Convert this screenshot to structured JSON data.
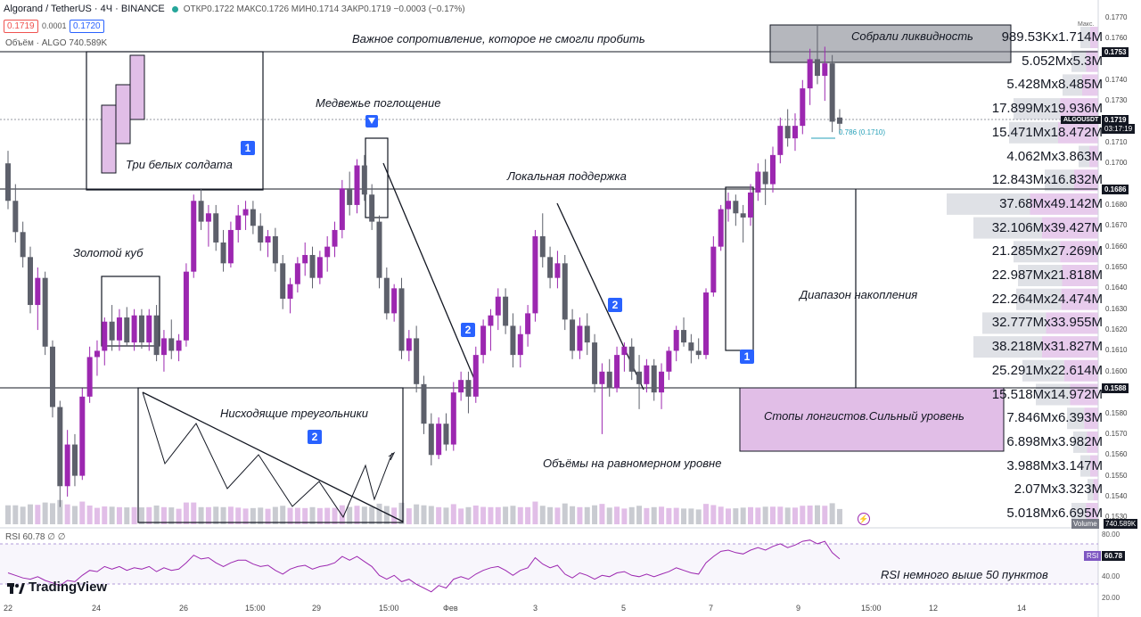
{
  "header": {
    "symbol": "Algorand / TetherUS · 4Ч · BINANCE",
    "ohlc": "ОТКР0.1722 МАКС0.1726 МИН0.1714 ЗАКР0.1719 −0.0003 (−0.17%)",
    "bid": "0.1719",
    "spread": "0.0001",
    "ask": "0.1720",
    "volume_label": "Объём · ALGO 740.589K"
  },
  "rsi_header": "RSI 60.78 ∅ ∅",
  "brand": "TradingView",
  "annotations": {
    "resistance": "Важное сопротивление, которое не смогли пробить",
    "liquidity": "Собрали ликвидность",
    "three_soldiers": "Три белых солдата",
    "bearish_engulfing": "Медвежье поглощение",
    "local_support": "Локальная поддержка",
    "golden_cube": "Золотой куб",
    "accumulation": "Диапазон накопления",
    "descending_triangles": "Нисходящие треугольники",
    "long_stops": "Стопы лонгистов.Сильный уровень",
    "volumes": "Объёмы на равномерном уровне",
    "rsi_note": "RSI немного выше 50 пунктов",
    "fib": "0.786 (0.1710)",
    "max_tag": "Макс.",
    "badge1": "1",
    "badge2": "2"
  },
  "volume_profile": [
    "989.53Kx1.714M",
    "5.052Mx5.3M",
    "5.428Mx8.485M",
    "17.899Mx19.936M",
    "15.471Mx18.472M",
    "4.062Mx3.863M",
    "12.843Mx16.832M",
    "37.68Mx49.142M",
    "32.106Mx39.427M",
    "21.285Mx27.269M",
    "22.987Mx21.818M",
    "22.264Mx24.474M",
    "32.777Mx33.955M",
    "38.218Mx31.827M",
    "25.291Mx22.614M",
    "15.518Mx14.972M",
    "7.846Mx6.393M",
    "6.898Mx3.982M",
    "3.988Mx3.147M",
    "2.07Mx3.323M",
    "5.018Mx6.695M"
  ],
  "price_axis": {
    "ticks": [
      "0.1770",
      "0.1760",
      "0.1740",
      "0.1730",
      "0.1710",
      "0.1700",
      "0.1680",
      "0.1670",
      "0.1660",
      "0.1650",
      "0.1640",
      "0.1630",
      "0.1620",
      "0.1610",
      "0.1600",
      "0.1580",
      "0.1570",
      "0.1560",
      "0.1550",
      "0.1540",
      "0.1530"
    ],
    "labels": {
      "p1": "0.1753",
      "p2": "ALGOUSDT",
      "p3": "0.1719",
      "p4": "03:17:19",
      "p5": "0.1686",
      "p6": "0.1588"
    }
  },
  "rsi_axis": [
    "80.00",
    "40.00",
    "20.00"
  ],
  "rsi_badge": {
    "name": "RSI",
    "value": "60.78"
  },
  "vol_badge": {
    "name": "Volume",
    "value": "740.589K"
  },
  "x_axis": [
    "22",
    "24",
    "26",
    "15:00",
    "29",
    "15:00",
    "Фев",
    "3",
    "5",
    "7",
    "9",
    "15:00",
    "12",
    "14"
  ],
  "colors": {
    "bull": "#9c27b0",
    "bear": "#5d606b",
    "bull_vol": "#e1bee7",
    "bear_vol": "#c9cbd1",
    "rsi": "#9c27b0",
    "stops_box": "#e1bee7"
  },
  "chart_data": {
    "type": "candlestick",
    "title": "Algorand / TetherUS · 4Ч · BINANCE",
    "ylim": [
      0.1525,
      0.1775
    ],
    "key_levels": [
      0.1753,
      0.1686,
      0.1588
    ],
    "candles": [
      [
        0.17,
        0.1706,
        0.1678,
        0.1682
      ],
      [
        0.1682,
        0.169,
        0.1662,
        0.1667
      ],
      [
        0.1667,
        0.1672,
        0.165,
        0.1655
      ],
      [
        0.1655,
        0.166,
        0.1628,
        0.1632
      ],
      [
        0.1632,
        0.165,
        0.162,
        0.1645
      ],
      [
        0.1645,
        0.1648,
        0.1608,
        0.1612
      ],
      [
        0.1612,
        0.1615,
        0.1578,
        0.1583
      ],
      [
        0.1583,
        0.1586,
        0.1535,
        0.1545
      ],
      [
        0.1545,
        0.1572,
        0.154,
        0.1565
      ],
      [
        0.1565,
        0.157,
        0.1545,
        0.155
      ],
      [
        0.155,
        0.1592,
        0.1548,
        0.1588
      ],
      [
        0.1588,
        0.1612,
        0.1585,
        0.1607
      ],
      [
        0.1607,
        0.1615,
        0.1598,
        0.161
      ],
      [
        0.161,
        0.1626,
        0.1603,
        0.1624
      ],
      [
        0.1624,
        0.1632,
        0.161,
        0.1615
      ],
      [
        0.1615,
        0.163,
        0.161,
        0.1626
      ],
      [
        0.1626,
        0.1631,
        0.1612,
        0.1614
      ],
      [
        0.1614,
        0.163,
        0.161,
        0.1627
      ],
      [
        0.1627,
        0.163,
        0.1611,
        0.1614
      ],
      [
        0.1614,
        0.163,
        0.161,
        0.1627
      ],
      [
        0.1627,
        0.1632,
        0.1605,
        0.1608
      ],
      [
        0.1608,
        0.162,
        0.16,
        0.1616
      ],
      [
        0.1616,
        0.1625,
        0.1606,
        0.161
      ],
      [
        0.161,
        0.1618,
        0.1605,
        0.1615
      ],
      [
        0.1615,
        0.1652,
        0.1612,
        0.1648
      ],
      [
        0.1648,
        0.1685,
        0.1645,
        0.1682
      ],
      [
        0.1682,
        0.1688,
        0.1668,
        0.1672
      ],
      [
        0.1672,
        0.168,
        0.166,
        0.1676
      ],
      [
        0.1676,
        0.168,
        0.1658,
        0.1662
      ],
      [
        0.1662,
        0.1668,
        0.1648,
        0.1652
      ],
      [
        0.1652,
        0.1672,
        0.165,
        0.1668
      ],
      [
        0.1668,
        0.168,
        0.1662,
        0.1675
      ],
      [
        0.1675,
        0.1682,
        0.1668,
        0.1678
      ],
      [
        0.1678,
        0.1682,
        0.1666,
        0.167
      ],
      [
        0.167,
        0.1676,
        0.1658,
        0.1662
      ],
      [
        0.1662,
        0.1668,
        0.1655,
        0.1665
      ],
      [
        0.1665,
        0.1669,
        0.1648,
        0.1652
      ],
      [
        0.1652,
        0.1656,
        0.163,
        0.1635
      ],
      [
        0.1635,
        0.1645,
        0.1628,
        0.1642
      ],
      [
        0.1642,
        0.1655,
        0.1638,
        0.1652
      ],
      [
        0.1652,
        0.1662,
        0.1646,
        0.1656
      ],
      [
        0.1656,
        0.166,
        0.164,
        0.1645
      ],
      [
        0.1645,
        0.1658,
        0.1642,
        0.1655
      ],
      [
        0.1655,
        0.1665,
        0.1648,
        0.166
      ],
      [
        0.166,
        0.1672,
        0.1655,
        0.1668
      ],
      [
        0.1668,
        0.1692,
        0.1664,
        0.1688
      ],
      [
        0.1688,
        0.1696,
        0.1675,
        0.168
      ],
      [
        0.168,
        0.1702,
        0.1676,
        0.1699
      ],
      [
        0.1699,
        0.1704,
        0.1682,
        0.1685
      ],
      [
        0.1685,
        0.169,
        0.1668,
        0.1672
      ],
      [
        0.1672,
        0.1675,
        0.164,
        0.1645
      ],
      [
        0.1645,
        0.165,
        0.1625,
        0.1628
      ],
      [
        0.1628,
        0.1642,
        0.1624,
        0.164
      ],
      [
        0.164,
        0.1645,
        0.1606,
        0.161
      ],
      [
        0.161,
        0.162,
        0.1605,
        0.1616
      ],
      [
        0.1616,
        0.1622,
        0.159,
        0.1594
      ],
      [
        0.1594,
        0.1598,
        0.157,
        0.1575
      ],
      [
        0.1575,
        0.158,
        0.1555,
        0.156
      ],
      [
        0.156,
        0.1578,
        0.1558,
        0.1575
      ],
      [
        0.1575,
        0.158,
        0.1562,
        0.1565
      ],
      [
        0.1565,
        0.1595,
        0.1562,
        0.159
      ],
      [
        0.159,
        0.16,
        0.1586,
        0.1596
      ],
      [
        0.1596,
        0.16,
        0.158,
        0.1588
      ],
      [
        0.1588,
        0.1612,
        0.1585,
        0.1608
      ],
      [
        0.1608,
        0.1625,
        0.1604,
        0.1622
      ],
      [
        0.1622,
        0.163,
        0.161,
        0.1627
      ],
      [
        0.1627,
        0.164,
        0.162,
        0.1636
      ],
      [
        0.1636,
        0.164,
        0.1618,
        0.1622
      ],
      [
        0.1622,
        0.1628,
        0.1602,
        0.1608
      ],
      [
        0.1608,
        0.1622,
        0.1602,
        0.1618
      ],
      [
        0.1618,
        0.1632,
        0.1612,
        0.1628
      ],
      [
        0.1628,
        0.1668,
        0.1624,
        0.1665
      ],
      [
        0.1665,
        0.1676,
        0.165,
        0.1655
      ],
      [
        0.1655,
        0.166,
        0.164,
        0.1645
      ],
      [
        0.1645,
        0.1658,
        0.164,
        0.1652
      ],
      [
        0.1652,
        0.1656,
        0.162,
        0.1625
      ],
      [
        0.1625,
        0.163,
        0.1606,
        0.161
      ],
      [
        0.161,
        0.1626,
        0.1606,
        0.1622
      ],
      [
        0.1622,
        0.1628,
        0.1608,
        0.1614
      ],
      [
        0.1614,
        0.1618,
        0.159,
        0.1594
      ],
      [
        0.1594,
        0.1604,
        0.157,
        0.16
      ],
      [
        0.16,
        0.1606,
        0.1588,
        0.1592
      ],
      [
        0.1592,
        0.1612,
        0.159,
        0.1608
      ],
      [
        0.1608,
        0.1614,
        0.16,
        0.1612
      ],
      [
        0.1612,
        0.1616,
        0.1596,
        0.16
      ],
      [
        0.16,
        0.1608,
        0.1582,
        0.1594
      ],
      [
        0.1594,
        0.1606,
        0.159,
        0.1603
      ],
      [
        0.1603,
        0.1606,
        0.1586,
        0.159
      ],
      [
        0.159,
        0.1604,
        0.1582,
        0.16
      ],
      [
        0.16,
        0.1612,
        0.1596,
        0.161
      ],
      [
        0.161,
        0.1622,
        0.1605,
        0.162
      ],
      [
        0.162,
        0.1626,
        0.1612,
        0.1614
      ],
      [
        0.1614,
        0.1618,
        0.1604,
        0.161
      ],
      [
        0.161,
        0.1616,
        0.1606,
        0.1608
      ],
      [
        0.1608,
        0.164,
        0.1606,
        0.1638
      ],
      [
        0.1638,
        0.1665,
        0.1636,
        0.166
      ],
      [
        0.166,
        0.168,
        0.1658,
        0.1678
      ],
      [
        0.1678,
        0.1686,
        0.1672,
        0.1682
      ],
      [
        0.1682,
        0.1685,
        0.167,
        0.1676
      ],
      [
        0.1676,
        0.168,
        0.1662,
        0.1674
      ],
      [
        0.1674,
        0.169,
        0.167,
        0.1686
      ],
      [
        0.1686,
        0.17,
        0.1682,
        0.1696
      ],
      [
        0.1696,
        0.1702,
        0.168,
        0.169
      ],
      [
        0.169,
        0.1708,
        0.1686,
        0.1704
      ],
      [
        0.1704,
        0.1722,
        0.17,
        0.1718
      ],
      [
        0.1718,
        0.1726,
        0.1708,
        0.1712
      ],
      [
        0.1712,
        0.1724,
        0.1706,
        0.1718
      ],
      [
        0.1718,
        0.174,
        0.1714,
        0.1736
      ],
      [
        0.1736,
        0.1755,
        0.1728,
        0.175
      ],
      [
        0.175,
        0.1766,
        0.1738,
        0.1742
      ],
      [
        0.1742,
        0.1756,
        0.173,
        0.1748
      ],
      [
        0.1748,
        0.1752,
        0.1715,
        0.172
      ],
      [
        0.1722,
        0.1726,
        0.1714,
        0.1719
      ]
    ],
    "rsi": [
      50,
      48,
      46,
      45,
      47,
      44,
      42,
      40,
      44,
      43,
      48,
      52,
      51,
      55,
      53,
      55,
      52,
      54,
      53,
      55,
      51,
      54,
      52,
      53,
      58,
      64,
      61,
      62,
      58,
      55,
      58,
      60,
      60,
      57,
      55,
      56,
      52,
      49,
      53,
      55,
      56,
      53,
      55,
      56,
      58,
      63,
      60,
      63,
      59,
      55,
      48,
      45,
      48,
      43,
      45,
      41,
      38,
      35,
      40,
      38,
      45,
      47,
      45,
      49,
      52,
      54,
      55,
      52,
      48,
      52,
      54,
      62,
      57,
      54,
      56,
      49,
      46,
      50,
      48,
      45,
      48,
      47,
      50,
      51,
      48,
      47,
      49,
      47,
      49,
      51,
      54,
      52,
      50,
      49,
      58,
      63,
      67,
      68,
      66,
      65,
      68,
      70,
      68,
      71,
      73,
      70,
      72,
      75,
      76,
      73,
      75,
      66,
      61
    ],
    "rsi_ylim": [
      20,
      80
    ]
  }
}
